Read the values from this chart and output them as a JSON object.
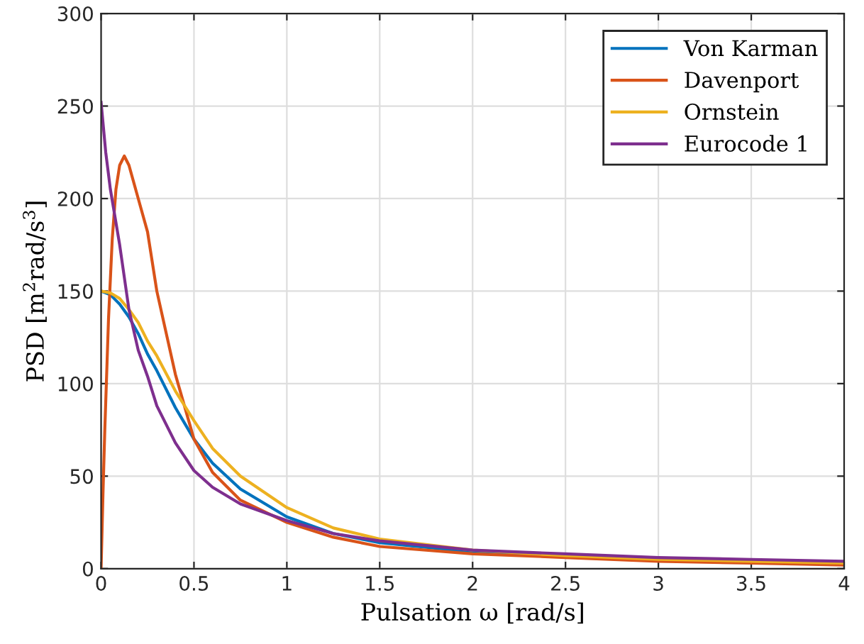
{
  "chart_data": {
    "type": "line",
    "xlabel": "Pulsation ω [rad/s]",
    "ylabel": "PSD [m$^{2}$rad/s$^{3}$]",
    "xlim": [
      0,
      4
    ],
    "ylim": [
      0,
      300
    ],
    "xticks": [
      0,
      0.5,
      1,
      1.5,
      2,
      2.5,
      3,
      3.5,
      4
    ],
    "yticks": [
      0,
      50,
      100,
      150,
      200,
      250,
      300
    ],
    "grid": true,
    "legend": "top right",
    "marker": "none",
    "line_style": "solid",
    "series": [
      {
        "name": "Von Karman",
        "color": "#0072bd",
        "x": [
          0,
          0.05,
          0.1,
          0.15,
          0.2,
          0.25,
          0.3,
          0.4,
          0.5,
          0.6,
          0.75,
          1,
          1.25,
          1.5,
          2,
          2.5
        ],
        "values": [
          150,
          148,
          143,
          136,
          127,
          116,
          107,
          87,
          70,
          57,
          43,
          28,
          19,
          14,
          9,
          7
        ]
      },
      {
        "name": "Davenport",
        "color": "#d95319",
        "x": [
          0,
          0.01,
          0.02,
          0.04,
          0.06,
          0.08,
          0.1,
          0.125,
          0.15,
          0.2,
          0.25,
          0.3,
          0.4,
          0.5,
          0.6,
          0.75,
          1,
          1.25,
          1.5,
          2,
          2.5,
          3,
          3.5,
          4
        ],
        "values": [
          0,
          40,
          75,
          135,
          178,
          205,
          218,
          223,
          218,
          200,
          182,
          150,
          105,
          70,
          52,
          37,
          25,
          17,
          12,
          8,
          6,
          4,
          3,
          2
        ]
      },
      {
        "name": "Ornstein",
        "color": "#edb120",
        "x": [
          0,
          0.05,
          0.1,
          0.15,
          0.2,
          0.25,
          0.3,
          0.4,
          0.5,
          0.6,
          0.75,
          1,
          1.25,
          1.5,
          2,
          2.5,
          3,
          3.5,
          4
        ],
        "values": [
          150,
          149,
          146,
          140,
          133,
          123,
          115,
          96,
          80,
          65,
          50,
          33,
          22,
          16,
          10,
          7,
          5,
          4,
          3
        ]
      },
      {
        "name": "Eurocode 1",
        "color": "#7e2f8e",
        "x": [
          0,
          0.025,
          0.05,
          0.1,
          0.15,
          0.2,
          0.25,
          0.3,
          0.4,
          0.5,
          0.6,
          0.75,
          1,
          1.25,
          1.5,
          2,
          2.5,
          3,
          3.5,
          4
        ],
        "values": [
          252,
          225,
          205,
          175,
          140,
          118,
          104,
          88,
          68,
          53,
          44,
          35,
          26,
          19,
          15,
          10,
          8,
          6,
          5,
          4
        ]
      }
    ]
  }
}
